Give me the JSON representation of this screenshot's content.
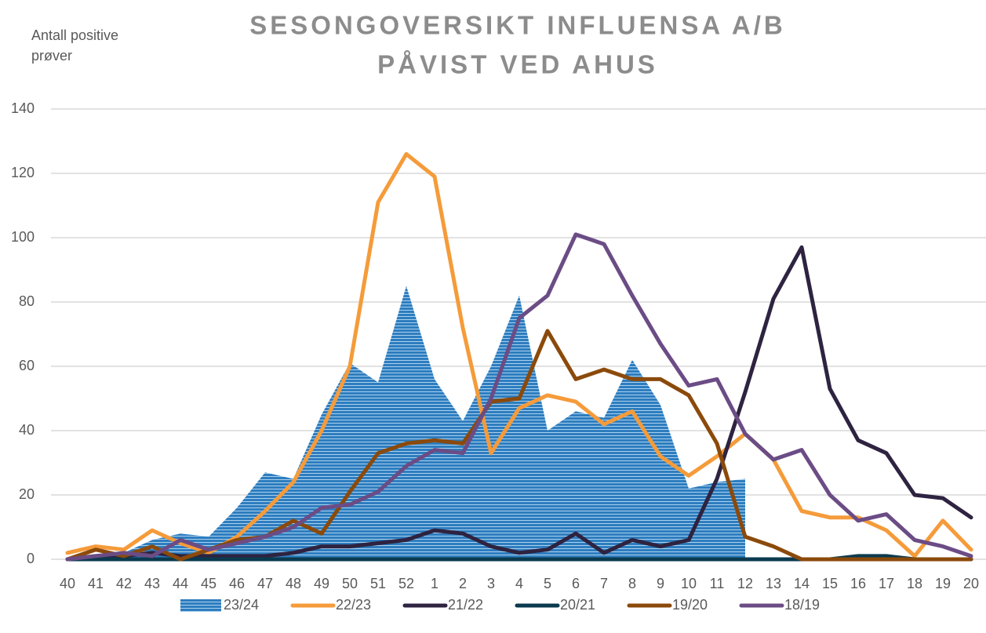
{
  "chart_data": {
    "type": "line",
    "title": [
      "SESONGOVERSIKT INFLUENSA A/B",
      "PÅVIST VED AHUS"
    ],
    "y_label": [
      "Antall positive",
      "prøver"
    ],
    "categories": [
      "40",
      "41",
      "42",
      "43",
      "44",
      "45",
      "46",
      "47",
      "48",
      "49",
      "50",
      "51",
      "52",
      "1",
      "2",
      "3",
      "4",
      "5",
      "6",
      "7",
      "8",
      "9",
      "10",
      "11",
      "12",
      "13",
      "14",
      "15",
      "16",
      "17",
      "18",
      "19",
      "20"
    ],
    "ylim": [
      0,
      140
    ],
    "yticks": [
      0,
      20,
      40,
      60,
      80,
      100,
      120,
      140
    ],
    "grid": true,
    "legend": "bottom",
    "series": [
      {
        "name": "23/24",
        "kind": "area",
        "color": "#2e7dbf",
        "values": [
          0,
          1,
          2,
          6,
          8,
          7,
          16,
          27,
          25,
          45,
          61,
          55,
          85,
          56,
          43,
          60,
          82,
          40,
          46,
          44,
          62,
          48,
          22,
          24,
          25,
          null,
          null,
          null,
          null,
          null,
          null,
          null,
          null
        ]
      },
      {
        "name": "22/23",
        "color": "#f59b3a",
        "values": [
          2,
          4,
          3,
          9,
          5,
          2,
          7,
          15,
          24,
          40,
          60,
          111,
          126,
          119,
          72,
          33,
          47,
          51,
          49,
          42,
          46,
          32,
          26,
          32,
          39,
          31,
          15,
          13,
          13,
          9,
          1,
          12,
          3
        ]
      },
      {
        "name": "21/22",
        "color": "#2e2340",
        "values": [
          0,
          1,
          1,
          2,
          1,
          1,
          1,
          1,
          2,
          4,
          4,
          5,
          6,
          9,
          8,
          4,
          2,
          3,
          8,
          2,
          6,
          4,
          6,
          25,
          52,
          81,
          97,
          53,
          37,
          33,
          20,
          19,
          13
        ]
      },
      {
        "name": "20/21",
        "color": "#0b3a4f",
        "values": [
          0,
          0,
          0,
          0,
          0,
          0,
          0,
          0,
          0,
          0,
          0,
          0,
          0,
          0,
          0,
          0,
          0,
          0,
          0,
          0,
          0,
          0,
          0,
          0,
          0,
          0,
          0,
          0,
          1,
          1,
          0,
          0,
          0
        ]
      },
      {
        "name": "19/20",
        "color": "#8b4a0b",
        "values": [
          0,
          3,
          1,
          4,
          0,
          3,
          6,
          7,
          12,
          8,
          21,
          33,
          36,
          37,
          36,
          49,
          50,
          71,
          56,
          59,
          56,
          56,
          51,
          36,
          7,
          4,
          0,
          0,
          0,
          0,
          0,
          0,
          0
        ]
      },
      {
        "name": "18/19",
        "color": "#6b4c85",
        "values": [
          0,
          1,
          2,
          1,
          6,
          3,
          5,
          7,
          10,
          16,
          17,
          21,
          29,
          34,
          33,
          50,
          75,
          82,
          101,
          98,
          82,
          67,
          54,
          56,
          39,
          31,
          34,
          20,
          12,
          14,
          6,
          4,
          1
        ]
      }
    ]
  }
}
